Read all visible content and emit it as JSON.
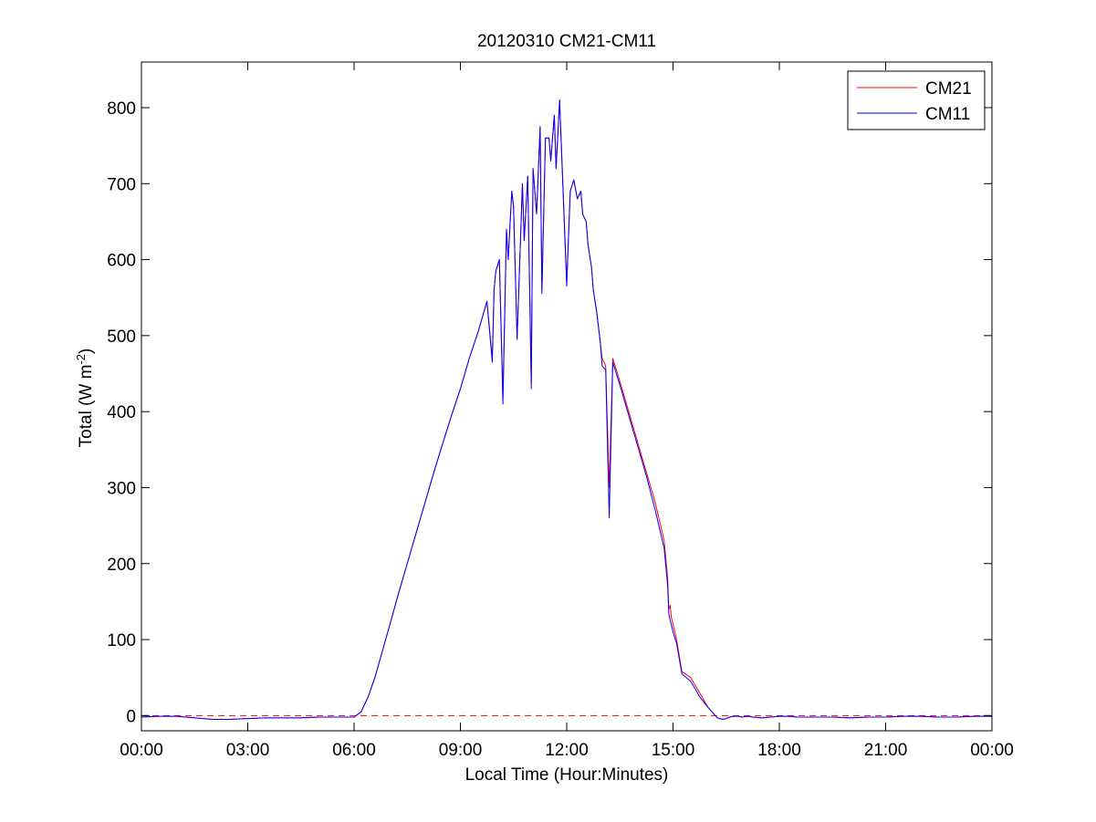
{
  "chart_data": {
    "type": "line",
    "title": "20120310 CM21-CM11",
    "xlabel": "Local Time (Hour:Minutes)",
    "ylabel": {
      "text": "Total (W m",
      "superscript": "-2",
      "suffix": ")"
    },
    "x_unit": "hours",
    "xlim": [
      0,
      24
    ],
    "ylim": [
      -20,
      860
    ],
    "x_ticks": [
      {
        "value": 0,
        "label": "00:00"
      },
      {
        "value": 3,
        "label": "03:00"
      },
      {
        "value": 6,
        "label": "06:00"
      },
      {
        "value": 9,
        "label": "09:00"
      },
      {
        "value": 12,
        "label": "12:00"
      },
      {
        "value": 15,
        "label": "15:00"
      },
      {
        "value": 18,
        "label": "18:00"
      },
      {
        "value": 21,
        "label": "21:00"
      },
      {
        "value": 24,
        "label": "00:00"
      }
    ],
    "y_ticks": [
      {
        "value": 0,
        "label": "0"
      },
      {
        "value": 100,
        "label": "100"
      },
      {
        "value": 200,
        "label": "200"
      },
      {
        "value": 300,
        "label": "300"
      },
      {
        "value": 400,
        "label": "400"
      },
      {
        "value": 500,
        "label": "500"
      },
      {
        "value": 600,
        "label": "600"
      },
      {
        "value": 700,
        "label": "700"
      },
      {
        "value": 800,
        "label": "800"
      }
    ],
    "grid": false,
    "legend_position": "top-right",
    "reference_line": {
      "y": 0,
      "style": "dashed",
      "color": "#ff0000"
    },
    "series": [
      {
        "name": "CM21",
        "color": "#ff0000",
        "x": [
          0,
          0.5,
          1.0,
          1.5,
          2.0,
          2.5,
          3.0,
          3.5,
          4.0,
          4.5,
          5.0,
          5.5,
          6.0,
          6.2,
          6.4,
          6.6,
          6.8,
          7.0,
          7.25,
          7.5,
          7.75,
          8.0,
          8.25,
          8.5,
          8.75,
          9.0,
          9.25,
          9.5,
          9.75,
          9.9,
          9.95,
          10.0,
          10.1,
          10.2,
          10.3,
          10.35,
          10.45,
          10.5,
          10.6,
          10.75,
          10.8,
          10.9,
          11.0,
          11.05,
          11.15,
          11.25,
          11.3,
          11.4,
          11.5,
          11.55,
          11.65,
          11.7,
          11.8,
          11.95,
          12.0,
          12.1,
          12.2,
          12.3,
          12.4,
          12.45,
          12.55,
          12.6,
          12.7,
          12.75,
          12.85,
          12.95,
          13.0,
          13.1,
          13.2,
          13.3,
          13.5,
          13.75,
          14.0,
          14.25,
          14.5,
          14.75,
          14.85,
          14.88,
          14.92,
          14.95,
          15.0,
          15.1,
          15.25,
          15.5,
          15.75,
          16.0,
          16.25,
          16.4,
          16.5,
          16.6,
          16.7,
          16.85,
          16.95,
          17.1,
          17.25,
          17.5,
          17.75,
          18.0,
          18.25,
          18.5,
          19.0,
          19.5,
          20.0,
          20.5,
          21.0,
          21.5,
          22.0,
          22.5,
          23.0,
          23.5,
          24.0
        ],
        "y": [
          -2,
          -1,
          -1,
          -3,
          -5,
          -5,
          -4,
          -3,
          -3,
          -3,
          -2,
          -2,
          -2,
          5,
          25,
          52,
          85,
          118,
          160,
          200,
          240,
          280,
          320,
          358,
          395,
          430,
          470,
          505,
          545,
          470,
          560,
          585,
          600,
          420,
          640,
          600,
          690,
          670,
          495,
          700,
          625,
          710,
          440,
          720,
          660,
          775,
          560,
          760,
          760,
          730,
          790,
          720,
          810,
          630,
          570,
          690,
          705,
          680,
          690,
          660,
          650,
          620,
          590,
          560,
          530,
          490,
          470,
          460,
          300,
          470,
          440,
          400,
          360,
          320,
          280,
          230,
          180,
          140,
          145,
          130,
          120,
          100,
          58,
          50,
          30,
          10,
          -3,
          -5,
          -4,
          -2,
          -1,
          -1,
          -2,
          -1,
          -2,
          -3,
          -2,
          -1,
          -1,
          -2,
          -2,
          -2,
          -3,
          -2,
          -2,
          -1,
          -1,
          -2,
          -2,
          -1,
          -1
        ],
        "note_type": "time_series"
      },
      {
        "name": "CM11",
        "color": "#0000ff",
        "x": [
          0,
          0.5,
          1.0,
          1.5,
          2.0,
          2.5,
          3.0,
          3.5,
          4.0,
          4.5,
          5.0,
          5.5,
          6.0,
          6.2,
          6.4,
          6.6,
          6.8,
          7.0,
          7.25,
          7.5,
          7.75,
          8.0,
          8.25,
          8.5,
          8.75,
          9.0,
          9.25,
          9.5,
          9.75,
          9.9,
          9.95,
          10.0,
          10.1,
          10.2,
          10.3,
          10.35,
          10.45,
          10.5,
          10.6,
          10.75,
          10.8,
          10.9,
          11.0,
          11.05,
          11.15,
          11.25,
          11.3,
          11.4,
          11.5,
          11.55,
          11.65,
          11.7,
          11.8,
          11.95,
          12.0,
          12.1,
          12.2,
          12.3,
          12.4,
          12.45,
          12.55,
          12.6,
          12.7,
          12.75,
          12.85,
          12.95,
          13.0,
          13.1,
          13.2,
          13.3,
          13.5,
          13.75,
          14.0,
          14.25,
          14.5,
          14.75,
          14.85,
          14.88,
          14.92,
          14.95,
          15.0,
          15.1,
          15.25,
          15.5,
          15.75,
          16.0,
          16.25,
          16.4,
          16.5,
          16.6,
          16.7,
          16.85,
          16.95,
          17.1,
          17.25,
          17.5,
          17.75,
          18.0,
          18.25,
          18.5,
          19.0,
          19.5,
          20.0,
          20.5,
          21.0,
          21.5,
          22.0,
          22.5,
          23.0,
          23.5,
          24.0
        ],
        "y": [
          -2,
          -1,
          -1,
          -3,
          -5,
          -5,
          -4,
          -3,
          -3,
          -3,
          -2,
          -2,
          -2,
          5,
          25,
          52,
          85,
          118,
          160,
          200,
          240,
          280,
          320,
          358,
          395,
          430,
          470,
          505,
          545,
          465,
          560,
          585,
          600,
          410,
          640,
          600,
          690,
          670,
          495,
          700,
          625,
          710,
          430,
          720,
          660,
          775,
          555,
          760,
          760,
          730,
          790,
          720,
          810,
          625,
          565,
          690,
          705,
          680,
          690,
          660,
          650,
          620,
          590,
          560,
          530,
          490,
          460,
          455,
          260,
          465,
          435,
          395,
          355,
          315,
          270,
          220,
          170,
          135,
          125,
          120,
          110,
          95,
          55,
          45,
          25,
          10,
          -3,
          -5,
          -4,
          -2,
          -1,
          -1,
          -2,
          -1,
          -2,
          -3,
          -2,
          -1,
          -1,
          -2,
          -2,
          -2,
          -3,
          -2,
          -2,
          -1,
          -1,
          -2,
          -2,
          -1,
          -1
        ]
      }
    ]
  }
}
